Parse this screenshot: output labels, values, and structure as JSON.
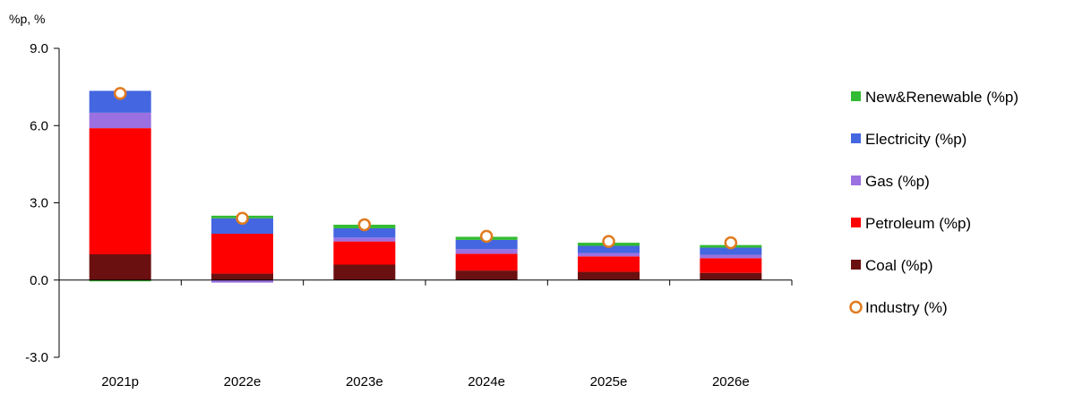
{
  "chart_data": {
    "type": "bar",
    "stacked": true,
    "ylabel": "%p, %",
    "ylim": [
      -3.0,
      9.0
    ],
    "yticks": [
      -3.0,
      0.0,
      3.0,
      6.0,
      9.0
    ],
    "ytick_labels": [
      "-3.0",
      "0.0",
      "3.0",
      "6.0",
      "9.0"
    ],
    "categories": [
      "2021p",
      "2022e",
      "2023e",
      "2024e",
      "2025e",
      "2026e"
    ],
    "series": [
      {
        "name": "Coal (%p)",
        "color": "#6b1010",
        "values": [
          1.0,
          0.25,
          0.6,
          0.37,
          0.32,
          0.28
        ]
      },
      {
        "name": "Petroleum (%p)",
        "color": "#ff0000",
        "values": [
          4.9,
          1.55,
          0.9,
          0.65,
          0.6,
          0.57
        ]
      },
      {
        "name": "Gas (%p)",
        "color": "#9b70e0",
        "values": [
          0.6,
          -0.1,
          0.15,
          0.18,
          0.13,
          0.13
        ]
      },
      {
        "name": "Electricity (%p)",
        "color": "#4466e0",
        "values": [
          0.85,
          0.6,
          0.36,
          0.36,
          0.28,
          0.28
        ]
      },
      {
        "name": "New&Renewable (%p)",
        "color": "#33bb33",
        "values": [
          -0.05,
          0.1,
          0.14,
          0.12,
          0.12,
          0.1
        ]
      }
    ],
    "line_series": {
      "name": "Industry (%)",
      "color": "#e07b20",
      "values": [
        7.25,
        2.4,
        2.15,
        1.7,
        1.5,
        1.45
      ]
    },
    "legend_position": "right",
    "legend_order": [
      "New&Renewable (%p)",
      "Electricity (%p)",
      "Gas (%p)",
      "Petroleum (%p)",
      "Coal (%p)",
      "Industry (%)"
    ],
    "grid": false
  }
}
